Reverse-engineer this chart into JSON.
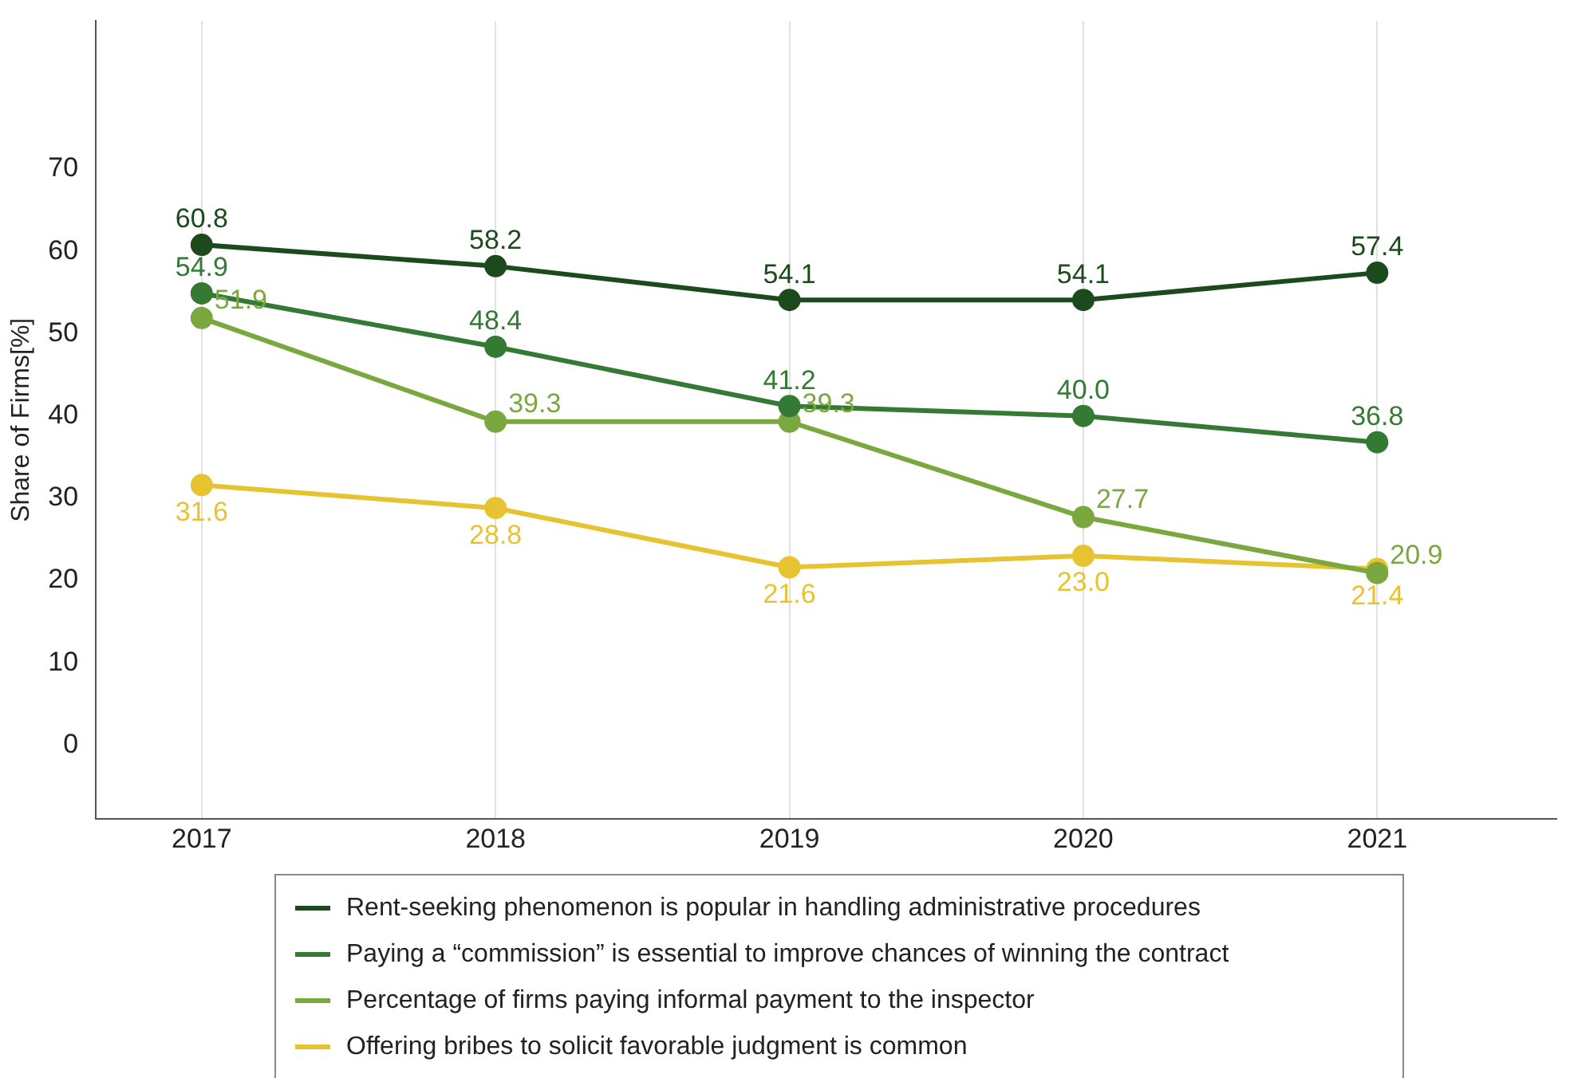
{
  "chart_data": {
    "type": "line",
    "ylabel": "Share of Firms[%]",
    "x": [
      2017,
      2018,
      2019,
      2020,
      2021
    ],
    "series": [
      {
        "name": "Rent-seeking phenomenon is popular in handling administrative procedures",
        "color": "#1d4a1c",
        "values": [
          60.8,
          58.2,
          54.1,
          54.1,
          57.4
        ],
        "value_labels": [
          "60.8",
          "58.2",
          "54.1",
          "54.1",
          "57.4"
        ]
      },
      {
        "name": "Paying a “commission” is essential to improve  chances of winning the contract",
        "color": "#347a35",
        "values": [
          54.9,
          48.4,
          41.2,
          40.0,
          36.8
        ],
        "value_labels": [
          "54.9",
          "48.4",
          "41.2",
          "40.0",
          "36.8"
        ]
      },
      {
        "name": "Percentage of firms paying informal payment to the inspector",
        "color": "#7aa83f",
        "values": [
          51.9,
          39.3,
          39.3,
          27.7,
          20.9
        ],
        "value_labels": [
          "51.9",
          "39.3",
          "39.3",
          "27.7",
          "20.9"
        ]
      },
      {
        "name": "Offering bribes to solicit favorable judgment is common",
        "color": "#e8c331",
        "values": [
          31.6,
          28.8,
          21.6,
          23.0,
          21.4
        ],
        "value_labels": [
          "31.6",
          "28.8",
          "21.6",
          "23.0",
          "21.4"
        ]
      }
    ],
    "xlim": [
      2016.64,
      2021.61
    ],
    "xticks": [
      2017,
      2018,
      2019,
      2020,
      2021
    ],
    "ylim": [
      -9,
      88
    ],
    "yticks": [
      0,
      10,
      20,
      30,
      40,
      50,
      60,
      70
    ],
    "grid": "x",
    "legend": "bottom",
    "marker": "circle",
    "line_style": "solid"
  }
}
